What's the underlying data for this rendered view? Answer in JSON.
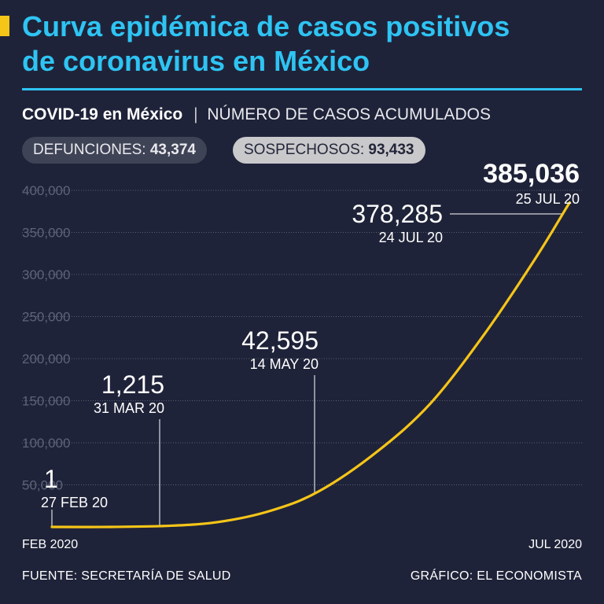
{
  "header": {
    "title_line1": "Curva epidémica de casos positivos",
    "title_line2": "de coronavirus en México",
    "subtitle_bold": "COVID-19 en México",
    "subtitle_sep": "|",
    "subtitle_rest": "NÚMERO DE CASOS ACUMULADOS"
  },
  "pills": {
    "defunciones_label": "DEFUNCIONES:",
    "defunciones_value": "43,374",
    "sospechosos_label": "SOSPECHOSOS:",
    "sospechosos_value": "93,433"
  },
  "footer": {
    "source": "FUENTE: SECRETARÍA DE SALUD",
    "credit": "GRÁFICO: EL ECONOMISTA"
  },
  "colors": {
    "background": "#1f2339",
    "title": "#2ec4f3",
    "line": "#f5c518",
    "grid": "#5a5e72",
    "tick": "#5f6378"
  },
  "chart_data": {
    "type": "line",
    "title": "COVID-19 en México",
    "subtitle": "NÚMERO DE CASOS ACUMULADOS",
    "xlabel": "",
    "ylabel": "",
    "ylim": [
      0,
      400000
    ],
    "yticks": [
      50000,
      100000,
      150000,
      200000,
      250000,
      300000,
      350000,
      400000
    ],
    "ytick_labels": [
      "50,000",
      "100,000",
      "150,000",
      "200,000",
      "250,000",
      "300,000",
      "350,000",
      "400,000"
    ],
    "xlim": [
      "2020-02-27",
      "2020-07-25"
    ],
    "x_axis_labels": [
      "FEB 2020",
      "JUL 2020"
    ],
    "grid": true,
    "series": [
      {
        "name": "",
        "x": [
          "2020-02-27",
          "2020-03-15",
          "2020-03-31",
          "2020-04-15",
          "2020-04-30",
          "2020-05-14",
          "2020-05-31",
          "2020-06-15",
          "2020-06-30",
          "2020-07-15",
          "2020-07-24",
          "2020-07-25"
        ],
        "y": [
          1,
          41,
          1215,
          5847,
          19224,
          42595,
          90664,
          146837,
          226089,
          317635,
          378285,
          385036
        ]
      }
    ],
    "annotations": [
      {
        "date": "2020-02-27",
        "value": 1,
        "value_label": "1",
        "date_label": "27 FEB 20"
      },
      {
        "date": "2020-03-31",
        "value": 1215,
        "value_label": "1,215",
        "date_label": "31 MAR 20"
      },
      {
        "date": "2020-05-14",
        "value": 42595,
        "value_label": "42,595",
        "date_label": "14 MAY 20"
      },
      {
        "date": "2020-07-24",
        "value": 378285,
        "value_label": "378,285",
        "date_label": "24 JUL 20"
      },
      {
        "date": "2020-07-25",
        "value": 385036,
        "value_label": "385,036",
        "date_label": "25 JUL 20"
      }
    ]
  }
}
